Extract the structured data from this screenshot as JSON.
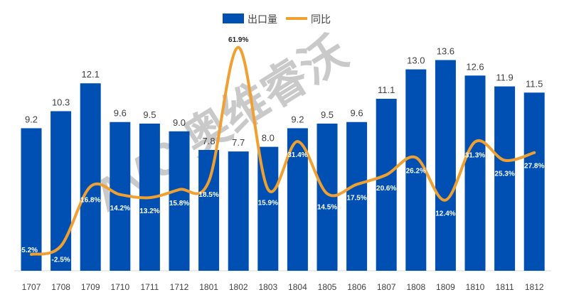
{
  "chart_data": {
    "type": "bar+line",
    "categories": [
      "1707",
      "1708",
      "1709",
      "1710",
      "1711",
      "1712",
      "1801",
      "1802",
      "1803",
      "1804",
      "1805",
      "1806",
      "1807",
      "1808",
      "1809",
      "1810",
      "1811",
      "1812"
    ],
    "series": [
      {
        "name": "出口量",
        "type": "bar",
        "color": "#0050b3",
        "values": [
          9.2,
          10.3,
          12.1,
          9.6,
          9.5,
          9.0,
          7.8,
          7.7,
          8.0,
          9.2,
          9.5,
          9.6,
          11.1,
          13.0,
          13.6,
          12.6,
          11.9,
          11.5
        ],
        "labels": [
          "9.2",
          "10.3",
          "12.1",
          "9.6",
          "9.5",
          "9.0",
          "7.8",
          "7.7",
          "8.0",
          "9.2",
          "9.5",
          "9.6",
          "11.1",
          "13.0",
          "13.6",
          "12.6",
          "11.9",
          "11.5"
        ]
      },
      {
        "name": "同比",
        "type": "line",
        "color": "#f0a030",
        "smooth": true,
        "values": [
          -5.2,
          -2.5,
          16.8,
          14.2,
          13.2,
          15.8,
          18.5,
          61.9,
          15.9,
          31.4,
          14.5,
          17.5,
          20.6,
          26.2,
          12.4,
          31.3,
          25.3,
          27.8
        ],
        "labels": [
          "-5.2%",
          "-2.5%",
          "16.8%",
          "14.2%",
          "13.2%",
          "15.8%",
          "18.5%",
          "61.9%",
          "15.9%",
          "31.4%",
          "14.5%",
          "17.5%",
          "20.6%",
          "26.2%",
          "12.4%",
          "31.3%",
          "25.3%",
          "27.8%"
        ]
      }
    ],
    "legend": "top-center",
    "grid": false,
    "watermark": "AVC 奥维睿沃"
  }
}
